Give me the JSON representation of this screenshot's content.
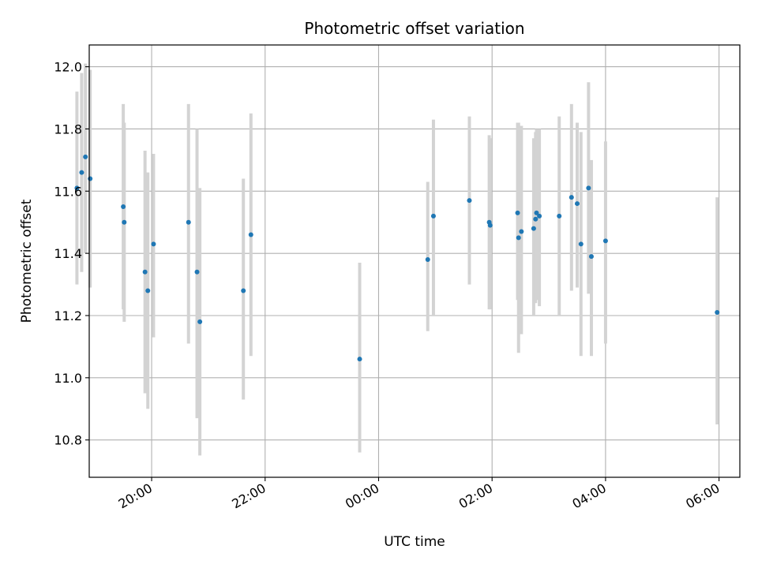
{
  "chart_data": {
    "type": "scatter",
    "title": "Photometric offset variation",
    "xlabel": "UTC time",
    "ylabel": "Photometric offset",
    "x_axis_kind": "time",
    "xlim": [
      "18:54",
      "06:22"
    ],
    "ylim": [
      10.68,
      12.07
    ],
    "xticks": [
      "20:00",
      "22:00",
      "00:00",
      "02:00",
      "04:00",
      "06:00"
    ],
    "yticks": [
      10.8,
      11.0,
      11.2,
      11.4,
      11.6,
      11.8,
      12.0
    ],
    "grid": true,
    "legend": "none",
    "colors": {
      "point": "#1f77b4",
      "errorbar": "#d3d3d3",
      "grid": "#b0b0b0"
    },
    "points": [
      {
        "t": "18:41",
        "y": 11.61,
        "ylo": 11.3,
        "yhi": 11.92
      },
      {
        "t": "18:46",
        "y": 11.66,
        "ylo": 11.34,
        "yhi": 11.98
      },
      {
        "t": "18:50",
        "y": 11.71,
        "ylo": 11.4,
        "yhi": 12.01
      },
      {
        "t": "18:55",
        "y": 11.64,
        "ylo": 11.29,
        "yhi": 11.99
      },
      {
        "t": "19:30",
        "y": 11.55,
        "ylo": 11.22,
        "yhi": 11.88
      },
      {
        "t": "19:31",
        "y": 11.5,
        "ylo": 11.18,
        "yhi": 11.82
      },
      {
        "t": "19:53",
        "y": 11.34,
        "ylo": 10.95,
        "yhi": 11.73
      },
      {
        "t": "19:56",
        "y": 11.28,
        "ylo": 10.9,
        "yhi": 11.66
      },
      {
        "t": "20:02",
        "y": 11.43,
        "ylo": 11.13,
        "yhi": 11.72
      },
      {
        "t": "20:39",
        "y": 11.5,
        "ylo": 11.11,
        "yhi": 11.88
      },
      {
        "t": "20:48",
        "y": 11.34,
        "ylo": 10.87,
        "yhi": 11.8
      },
      {
        "t": "20:51",
        "y": 11.18,
        "ylo": 10.75,
        "yhi": 11.61
      },
      {
        "t": "21:37",
        "y": 11.28,
        "ylo": 10.93,
        "yhi": 11.64
      },
      {
        "t": "21:45",
        "y": 11.46,
        "ylo": 11.07,
        "yhi": 11.85
      },
      {
        "t": "23:40",
        "y": 11.06,
        "ylo": 10.76,
        "yhi": 11.37
      },
      {
        "t": "00:52",
        "y": 11.38,
        "ylo": 11.15,
        "yhi": 11.63
      },
      {
        "t": "00:58",
        "y": 11.52,
        "ylo": 11.2,
        "yhi": 11.83
      },
      {
        "t": "01:36",
        "y": 11.57,
        "ylo": 11.3,
        "yhi": 11.84
      },
      {
        "t": "01:57",
        "y": 11.5,
        "ylo": 11.22,
        "yhi": 11.78
      },
      {
        "t": "01:58",
        "y": 11.49,
        "ylo": 11.22,
        "yhi": 11.77
      },
      {
        "t": "02:27",
        "y": 11.53,
        "ylo": 11.25,
        "yhi": 11.82
      },
      {
        "t": "02:28",
        "y": 11.45,
        "ylo": 11.08,
        "yhi": 11.82
      },
      {
        "t": "02:31",
        "y": 11.47,
        "ylo": 11.14,
        "yhi": 11.81
      },
      {
        "t": "02:44",
        "y": 11.48,
        "ylo": 11.2,
        "yhi": 11.77
      },
      {
        "t": "02:46",
        "y": 11.51,
        "ylo": 11.24,
        "yhi": 11.79
      },
      {
        "t": "02:47",
        "y": 11.53,
        "ylo": 11.25,
        "yhi": 11.8
      },
      {
        "t": "02:50",
        "y": 11.52,
        "ylo": 11.23,
        "yhi": 11.8
      },
      {
        "t": "03:11",
        "y": 11.52,
        "ylo": 11.2,
        "yhi": 11.84
      },
      {
        "t": "03:24",
        "y": 11.58,
        "ylo": 11.28,
        "yhi": 11.88
      },
      {
        "t": "03:30",
        "y": 11.56,
        "ylo": 11.29,
        "yhi": 11.82
      },
      {
        "t": "03:34",
        "y": 11.43,
        "ylo": 11.07,
        "yhi": 11.79
      },
      {
        "t": "03:42",
        "y": 11.61,
        "ylo": 11.27,
        "yhi": 11.95
      },
      {
        "t": "03:45",
        "y": 11.39,
        "ylo": 11.07,
        "yhi": 11.7
      },
      {
        "t": "04:00",
        "y": 11.44,
        "ylo": 11.11,
        "yhi": 11.76
      },
      {
        "t": "05:58",
        "y": 11.21,
        "ylo": 10.85,
        "yhi": 11.58
      }
    ]
  }
}
